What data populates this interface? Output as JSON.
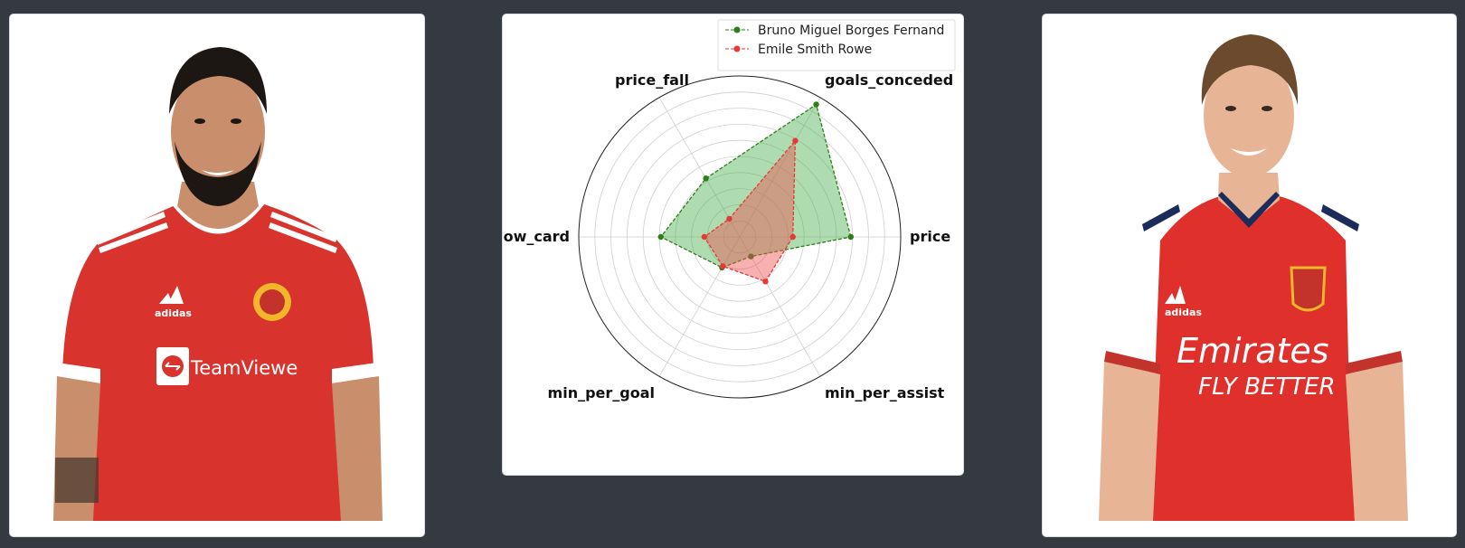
{
  "players": [
    {
      "name": "Bruno Miguel Borges Fernand",
      "kit": {
        "shirt": "#d8332c",
        "trim": "#ffffff",
        "skin": "#c98f6d",
        "hair": "#1d1713"
      },
      "crest_color": "#f2b62b",
      "sponsor_text": "TeamViewe",
      "brand_text": "adidas"
    },
    {
      "name": "Emile Smith Rowe",
      "kit": {
        "shirt": "#e0302c",
        "trim": "#ffffff",
        "skin": "#e7b596",
        "hair": "#6b4a2e"
      },
      "crest_color": "#c4322c",
      "sponsor_text": "Emirates",
      "sponsor_subtext": "FLY BETTER",
      "brand_text": "adidas"
    }
  ],
  "chart_data": {
    "type": "radar",
    "axes": [
      "price",
      "goals_conceded",
      "price_fall",
      "yellow_card",
      "min_per_goal",
      "min_per_assist"
    ],
    "rmax": 10,
    "rings": 9,
    "grid": true,
    "legend_position": "top-right",
    "series": [
      {
        "name": "Bruno Miguel Borges Fernand",
        "values": [
          6.9,
          9.5,
          4.2,
          4.9,
          2.2,
          1.4
        ],
        "color": "#2e7d1a",
        "fill": "#4caf50"
      },
      {
        "name": "Emile Smith Rowe",
        "values": [
          3.3,
          6.9,
          1.3,
          2.2,
          2.1,
          3.2
        ],
        "color": "#e53935",
        "fill": "#ef5350"
      }
    ]
  }
}
